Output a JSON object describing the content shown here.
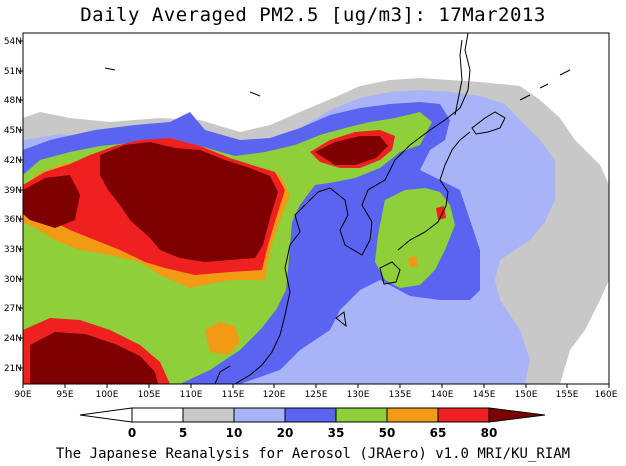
{
  "map": {
    "title": "Daily Averaged PM2.5 [ug/m3]: 17Mar2013",
    "footer": "The Japanese Reanalysis for Aerosol (JRAero) v1.0 MRI/KU_RIAM",
    "lon_ticks": [
      "90E",
      "95E",
      "100E",
      "105E",
      "110E",
      "115E",
      "120E",
      "125E",
      "130E",
      "135E",
      "140E",
      "145E",
      "150E",
      "155E",
      "160E"
    ],
    "lat_ticks": [
      "54N",
      "51N",
      "48N",
      "45N",
      "42N",
      "39N",
      "36N",
      "33N",
      "30N",
      "27N",
      "24N",
      "21N"
    ],
    "lon_range": [
      90,
      160
    ],
    "lat_range": [
      19.5,
      55
    ],
    "colorbar": {
      "labels": [
        "0",
        "5",
        "10",
        "20",
        "35",
        "50",
        "65",
        "80"
      ],
      "colors": [
        "#ffffff",
        "#c8c8c8",
        "#a9b4f8",
        "#5a64f0",
        "#8fcf3a",
        "#f29a14",
        "#ef2020",
        "#7f0000"
      ]
    }
  }
}
